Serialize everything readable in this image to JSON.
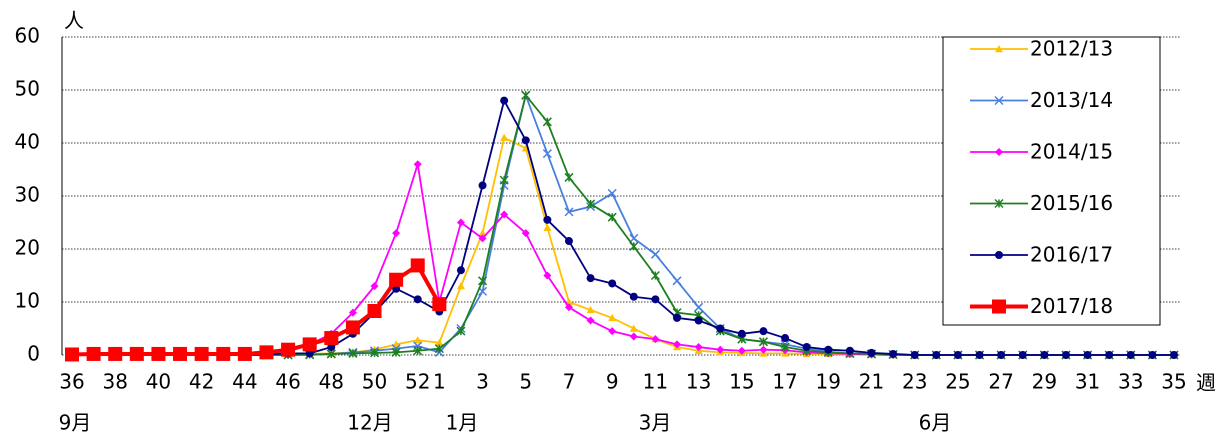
{
  "chart_data": {
    "type": "line",
    "y_unit": "人",
    "x_unit": "週",
    "annotations": [
      "9月",
      "12月",
      "1月",
      "3月",
      "6月"
    ],
    "categories": [
      36,
      null,
      38,
      null,
      40,
      null,
      42,
      null,
      44,
      null,
      46,
      null,
      48,
      null,
      50,
      null,
      52,
      1,
      null,
      3,
      null,
      5,
      null,
      7,
      null,
      9,
      null,
      11,
      null,
      13,
      null,
      15,
      null,
      17,
      null,
      19,
      null,
      21,
      null,
      23,
      null,
      25,
      null,
      27,
      null,
      29,
      null,
      31,
      null,
      33,
      null,
      35
    ],
    "ylim": [
      0,
      60
    ],
    "yticks": [
      0,
      10,
      20,
      30,
      40,
      50,
      60
    ],
    "grid": true,
    "legend": "right",
    "series": [
      {
        "name": "2012/13",
        "color": "#ffc000",
        "marker": "triangle",
        "values": [
          0,
          0,
          0,
          0,
          0,
          0,
          0,
          0,
          0,
          0,
          0.1,
          0.2,
          0.3,
          0.5,
          1,
          2,
          2.8,
          2.3,
          13,
          23,
          41,
          39,
          24,
          10,
          8.5,
          7,
          5,
          3,
          1.5,
          0.8,
          0.5,
          0.4,
          0.3,
          0.3,
          0.2,
          0.2,
          0.1,
          0.1,
          0,
          0,
          0,
          0,
          0,
          0,
          0,
          0,
          0,
          0,
          0,
          0,
          0,
          0
        ]
      },
      {
        "name": "2013/14",
        "color": "#4a7fe0",
        "marker": "x",
        "values": [
          0,
          0,
          0,
          0,
          0,
          0,
          0,
          0,
          0,
          0,
          0,
          0,
          0.2,
          0.5,
          0.8,
          1.2,
          1.7,
          0.5,
          5,
          12,
          32,
          49,
          38,
          27,
          28,
          30.5,
          22,
          19,
          14,
          9,
          5,
          3,
          2.5,
          2,
          1.2,
          0.6,
          0.3,
          0.2,
          0.1,
          0,
          0,
          0,
          0,
          0,
          0,
          0,
          0,
          0,
          0,
          0,
          0,
          0
        ]
      },
      {
        "name": "2014/15",
        "color": "#ff00ff",
        "marker": "diamond",
        "values": [
          0,
          0,
          0,
          0,
          0,
          0,
          0,
          0,
          0,
          0,
          0.6,
          2,
          4,
          8,
          13,
          23,
          36,
          10,
          25,
          22,
          26.5,
          23,
          15,
          9,
          6.5,
          4.5,
          3.5,
          3,
          2,
          1.5,
          1,
          0.8,
          1,
          0.9,
          0.5,
          0.3,
          0.2,
          0.1,
          0,
          0,
          0,
          0,
          0,
          0,
          0,
          0,
          0,
          0,
          0,
          0,
          0,
          0
        ]
      },
      {
        "name": "2015/16",
        "color": "#1e7f1e",
        "marker": "star",
        "values": [
          0,
          0,
          0,
          0,
          0,
          0,
          0,
          0,
          0,
          0,
          0,
          0.1,
          0.2,
          0.3,
          0.4,
          0.5,
          0.8,
          1.2,
          4.5,
          14,
          33,
          49,
          44,
          33.5,
          28.5,
          26,
          20.5,
          15,
          8,
          7.5,
          4.5,
          3,
          2.5,
          1.5,
          0.8,
          0.5,
          0.3,
          0.2,
          0.1,
          0,
          0,
          0,
          0,
          0,
          0,
          0,
          0,
          0,
          0,
          0,
          0,
          0
        ]
      },
      {
        "name": "2016/17",
        "color": "#000080",
        "marker": "circle",
        "values": [
          0,
          0,
          0,
          0,
          0,
          0,
          0,
          0,
          0,
          0.1,
          0.3,
          0.3,
          1.5,
          4,
          8,
          12.5,
          10.5,
          8.2,
          16,
          32,
          48,
          40.5,
          25.5,
          21.5,
          14.5,
          13.5,
          11,
          10.5,
          7,
          6.5,
          5,
          4,
          4.5,
          3.2,
          1.5,
          1,
          0.8,
          0.4,
          0.2,
          0,
          0,
          0,
          0,
          0,
          0,
          0,
          0,
          0,
          0,
          0,
          0,
          0
        ]
      },
      {
        "name": "2017/18",
        "color": "#ff0000",
        "marker": "square",
        "values": [
          0.1,
          0.2,
          0.2,
          0.2,
          0.2,
          0.2,
          0.2,
          0.2,
          0.2,
          0.5,
          1,
          2,
          3.2,
          5.2,
          8.3,
          14.2,
          16.9,
          9.6,
          null,
          null,
          null,
          null,
          null,
          null,
          null,
          null,
          null,
          null,
          null,
          null,
          null,
          null,
          null,
          null,
          null,
          null,
          null,
          null,
          null,
          null,
          null,
          null,
          null,
          null,
          null,
          null,
          null,
          null,
          null,
          null,
          null,
          null
        ]
      }
    ]
  }
}
